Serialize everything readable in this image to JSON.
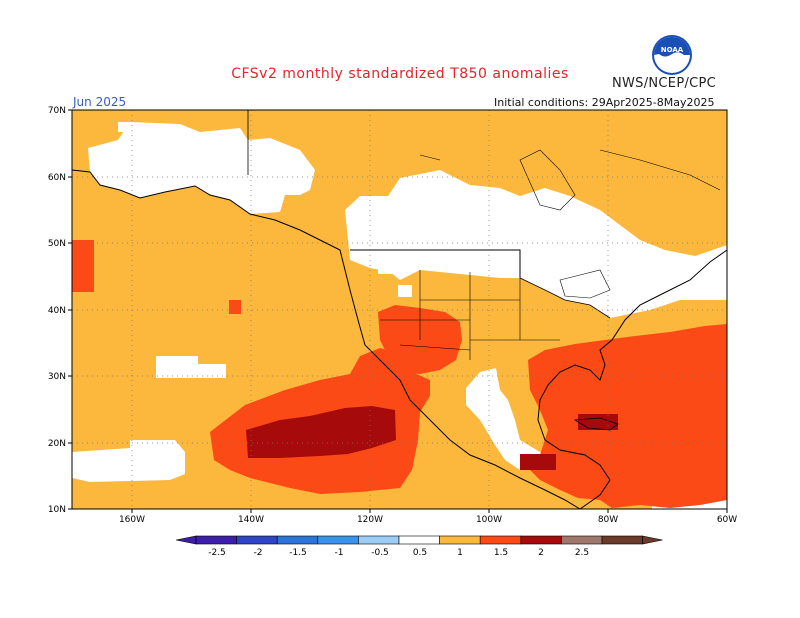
{
  "header": {
    "title": "CFSv2 monthly standardized T850 anomalies",
    "agency": "NWS/NCEP/CPC",
    "logo_text": "NOAA",
    "month": "Jun 2025",
    "initial_conditions": "Initial conditions: 29Apr2025-8May2025"
  },
  "axes": {
    "lat_labels": [
      "70N",
      "60N",
      "50N",
      "40N",
      "30N",
      "20N",
      "10N"
    ],
    "lon_labels": [
      "160W",
      "140W",
      "120W",
      "100W",
      "80W",
      "60W"
    ]
  },
  "colorbar": {
    "tick_labels": [
      "-2.5",
      "-2",
      "-1.5",
      "-1",
      "-0.5",
      "0.5",
      "1",
      "1.5",
      "2",
      "2.5"
    ],
    "colors": [
      "#3d1ea8",
      "#2e45c6",
      "#2c74d6",
      "#3a93ea",
      "#9ccdf5",
      "#ffffff",
      "#fbb83c",
      "#fb4a16",
      "#a60a0a",
      "#9e786a",
      "#6a3a2a"
    ]
  },
  "map_colors": {
    "neutral": "#ffffff",
    "weak_warm": "#fbb83c",
    "warm": "#fb4a16",
    "strong_warm": "#a60a0a"
  }
}
